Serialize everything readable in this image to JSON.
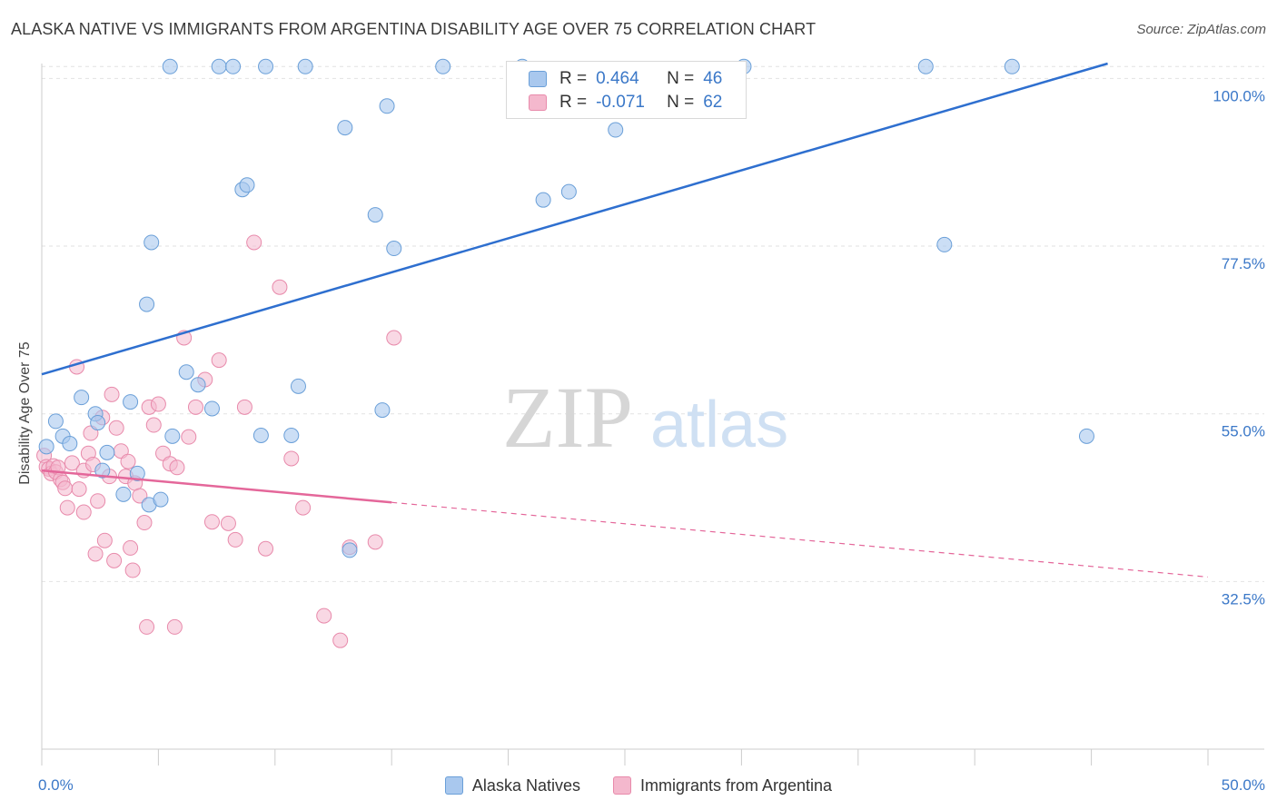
{
  "header": {
    "title": "ALASKA NATIVE VS IMMIGRANTS FROM ARGENTINA DISABILITY AGE OVER 75 CORRELATION CHART",
    "source": "Source: ZipAtlas.com"
  },
  "watermark": {
    "zip": "ZIP",
    "atlas": "atlas"
  },
  "legend": {
    "items": [
      {
        "r_label": "R =",
        "r_value": "0.464",
        "n_label": "N =",
        "n_value": "46"
      },
      {
        "r_label": "R =",
        "r_value": "-0.071",
        "n_label": "N =",
        "n_value": "62"
      }
    ]
  },
  "chart_data": {
    "type": "scatter",
    "title": "ALASKA NATIVE VS IMMIGRANTS FROM ARGENTINA DISABILITY AGE OVER 75 CORRELATION CHART",
    "xlabel": "",
    "ylabel": "Disability Age Over 75",
    "xlim": [
      0,
      50
    ],
    "ylim": [
      10,
      102
    ],
    "x_tick_labels": [
      "0.0%",
      "50.0%"
    ],
    "y_ticks": [
      32.5,
      55.0,
      77.5,
      100.0
    ],
    "y_tick_labels": [
      "32.5%",
      "55.0%",
      "77.5%",
      "100.0%"
    ],
    "grid": true,
    "legend_position": "bottom-center",
    "colors": {
      "blue_fill": "#a9c8ee",
      "blue_stroke": "#6a9fd8",
      "blue_line": "#2e6fcf",
      "pink_fill": "#f4b8cd",
      "pink_stroke": "#e88aab",
      "pink_line": "#e4679a",
      "tick_label": "#3b78c8",
      "grid": "#e2e2e2"
    },
    "series": [
      {
        "name": "Alaska Natives",
        "r": 0.464,
        "n": 46,
        "trend": {
          "x": [
            0,
            45.7
          ],
          "y": [
            60.3,
            102.0
          ],
          "dashed_from": null
        },
        "points": [
          [
            0.2,
            50.6
          ],
          [
            0.6,
            54.0
          ],
          [
            0.9,
            52.0
          ],
          [
            1.2,
            51.0
          ],
          [
            1.7,
            57.2
          ],
          [
            2.3,
            55.0
          ],
          [
            2.4,
            53.8
          ],
          [
            2.6,
            47.4
          ],
          [
            2.8,
            49.8
          ],
          [
            3.8,
            56.6
          ],
          [
            4.1,
            47.0
          ],
          [
            3.5,
            44.2
          ],
          [
            4.6,
            42.8
          ],
          [
            5.1,
            43.5
          ],
          [
            4.7,
            78.0
          ],
          [
            4.5,
            69.7
          ],
          [
            5.6,
            52.0
          ],
          [
            6.2,
            60.6
          ],
          [
            6.7,
            58.9
          ],
          [
            7.3,
            55.7
          ],
          [
            8.6,
            85.1
          ],
          [
            8.8,
            85.7
          ],
          [
            9.4,
            52.1
          ],
          [
            10.7,
            52.1
          ],
          [
            11.0,
            58.7
          ],
          [
            13.0,
            93.4
          ],
          [
            14.3,
            81.7
          ],
          [
            14.8,
            96.3
          ],
          [
            15.1,
            77.2
          ],
          [
            14.6,
            55.5
          ],
          [
            13.2,
            36.7
          ],
          [
            5.5,
            101.6
          ],
          [
            7.6,
            101.6
          ],
          [
            8.2,
            101.6
          ],
          [
            9.6,
            101.6
          ],
          [
            11.3,
            101.6
          ],
          [
            17.2,
            101.6
          ],
          [
            20.6,
            101.6
          ],
          [
            21.5,
            83.7
          ],
          [
            22.6,
            84.8
          ],
          [
            24.6,
            93.1
          ],
          [
            30.1,
            101.6
          ],
          [
            37.9,
            101.6
          ],
          [
            41.6,
            101.6
          ],
          [
            38.7,
            77.7
          ],
          [
            44.8,
            52.0
          ]
        ]
      },
      {
        "name": "Immigrants from Argentina",
        "r": -0.071,
        "n": 62,
        "trend": {
          "x": [
            0,
            50
          ],
          "y": [
            47.4,
            33.1
          ],
          "dashed_from": 15
        },
        "points": [
          [
            0.1,
            49.4
          ],
          [
            0.2,
            47.9
          ],
          [
            0.3,
            47.6
          ],
          [
            0.4,
            47.0
          ],
          [
            0.5,
            48.0
          ],
          [
            0.6,
            47.2
          ],
          [
            0.7,
            47.8
          ],
          [
            0.8,
            46.2
          ],
          [
            0.9,
            45.8
          ],
          [
            1.0,
            45.0
          ],
          [
            1.1,
            42.4
          ],
          [
            1.3,
            48.4
          ],
          [
            1.5,
            61.3
          ],
          [
            1.6,
            44.9
          ],
          [
            1.8,
            47.4
          ],
          [
            2.0,
            49.7
          ],
          [
            2.1,
            52.4
          ],
          [
            2.2,
            48.2
          ],
          [
            2.4,
            43.3
          ],
          [
            2.6,
            54.5
          ],
          [
            2.7,
            38.0
          ],
          [
            2.9,
            46.6
          ],
          [
            3.0,
            57.6
          ],
          [
            3.2,
            53.1
          ],
          [
            3.4,
            50.0
          ],
          [
            3.6,
            46.6
          ],
          [
            3.7,
            48.6
          ],
          [
            3.8,
            37.0
          ],
          [
            4.0,
            45.7
          ],
          [
            4.2,
            44.0
          ],
          [
            4.4,
            40.4
          ],
          [
            4.6,
            55.9
          ],
          [
            4.8,
            53.5
          ],
          [
            5.0,
            56.3
          ],
          [
            5.2,
            49.7
          ],
          [
            5.5,
            48.3
          ],
          [
            5.8,
            47.8
          ],
          [
            6.1,
            65.2
          ],
          [
            6.3,
            51.9
          ],
          [
            6.6,
            55.9
          ],
          [
            7.0,
            59.6
          ],
          [
            7.3,
            40.5
          ],
          [
            7.6,
            62.2
          ],
          [
            8.0,
            40.3
          ],
          [
            8.3,
            38.1
          ],
          [
            8.7,
            55.9
          ],
          [
            9.1,
            78.0
          ],
          [
            9.6,
            36.9
          ],
          [
            10.2,
            72.0
          ],
          [
            10.7,
            49.0
          ],
          [
            11.2,
            42.4
          ],
          [
            12.1,
            27.9
          ],
          [
            12.8,
            24.6
          ],
          [
            13.2,
            37.1
          ],
          [
            14.3,
            37.8
          ],
          [
            15.1,
            65.2
          ],
          [
            2.3,
            36.2
          ],
          [
            3.1,
            35.3
          ],
          [
            3.9,
            34.0
          ],
          [
            4.5,
            26.4
          ],
          [
            5.7,
            26.4
          ],
          [
            1.8,
            41.8
          ]
        ]
      }
    ]
  },
  "bottom_legend": {
    "blue_label": "Alaska Natives",
    "pink_label": "Immigrants from Argentina"
  }
}
